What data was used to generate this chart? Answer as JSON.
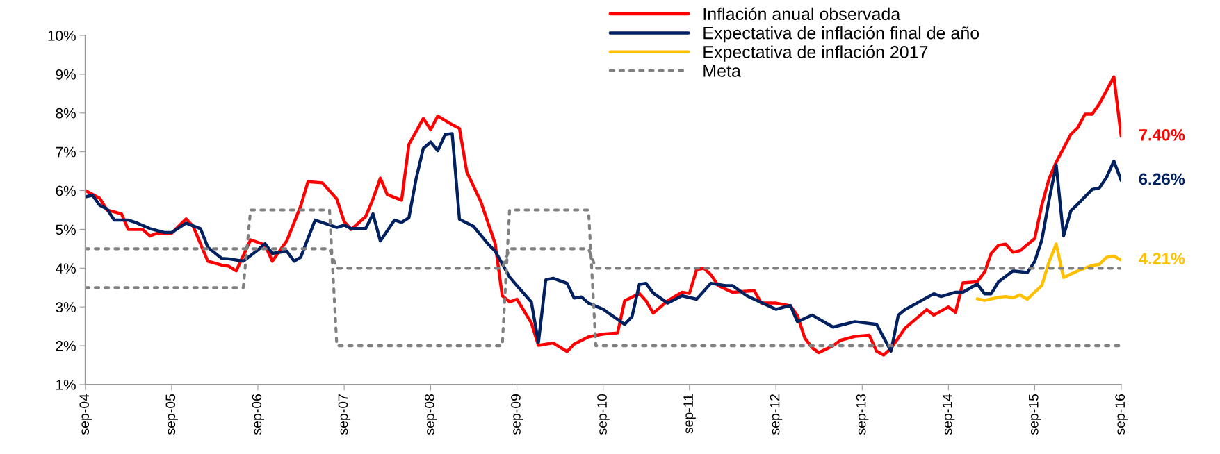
{
  "chart_data": {
    "type": "line",
    "xlim": [
      "2004-09",
      "2016-09"
    ],
    "xticks": [
      {
        "value": "2004-09",
        "label": "sep-04"
      },
      {
        "value": "2005-09",
        "label": "sep-05"
      },
      {
        "value": "2006-09",
        "label": "sep-06"
      },
      {
        "value": "2007-09",
        "label": "sep-07"
      },
      {
        "value": "2008-09",
        "label": "sep-08"
      },
      {
        "value": "2009-09",
        "label": "sep-09"
      },
      {
        "value": "2010-09",
        "label": "sep-10"
      },
      {
        "value": "2011-09",
        "label": "sep-11"
      },
      {
        "value": "2012-09",
        "label": "sep-12"
      },
      {
        "value": "2013-09",
        "label": "sep-13"
      },
      {
        "value": "2014-09",
        "label": "sep-14"
      },
      {
        "value": "2015-09",
        "label": "sep-15"
      },
      {
        "value": "2016-09",
        "label": "sep-16"
      }
    ],
    "ylim": [
      1,
      10
    ],
    "yticks": [
      {
        "value": 1,
        "label": "1%"
      },
      {
        "value": 2,
        "label": "2%"
      },
      {
        "value": 3,
        "label": "3%"
      },
      {
        "value": 4,
        "label": "4%"
      },
      {
        "value": 5,
        "label": "5%"
      },
      {
        "value": 6,
        "label": "6%"
      },
      {
        "value": 7,
        "label": "7%"
      },
      {
        "value": 8,
        "label": "8%"
      },
      {
        "value": 9,
        "label": "9%"
      },
      {
        "value": 10,
        "label": "10%"
      }
    ],
    "grid": false,
    "legend": "top right",
    "marker": "none",
    "series": [
      {
        "name": "Inflación anual observada",
        "color": "#ff0000",
        "line_style": "solid",
        "x": [
          "2004-09",
          "2004-11",
          "2004-12",
          "2005-02",
          "2005-03",
          "2005-05",
          "2005-06",
          "2005-07",
          "2005-09",
          "2005-11",
          "2005-12",
          "2006-01",
          "2006-02",
          "2006-04",
          "2006-05",
          "2006-06",
          "2006-08",
          "2006-10",
          "2006-11",
          "2006-12",
          "2007-01",
          "2007-03",
          "2007-04",
          "2007-06",
          "2007-08",
          "2007-09",
          "2007-10",
          "2007-12",
          "2008-01",
          "2008-02",
          "2008-03",
          "2008-05",
          "2008-06",
          "2008-08",
          "2008-09",
          "2008-10",
          "2008-12",
          "2009-01",
          "2009-02",
          "2009-04",
          "2009-06",
          "2009-07",
          "2009-08",
          "2009-09",
          "2009-11",
          "2009-12",
          "2010-02",
          "2010-04",
          "2010-05",
          "2010-07",
          "2010-09",
          "2010-11",
          "2010-12",
          "2011-02",
          "2011-03",
          "2011-04",
          "2011-06",
          "2011-08",
          "2011-09",
          "2011-10",
          "2011-11",
          "2011-12",
          "2012-01",
          "2012-03",
          "2012-06",
          "2012-07",
          "2012-09",
          "2012-11",
          "2012-12",
          "2013-01",
          "2013-02",
          "2013-03",
          "2013-05",
          "2013-06",
          "2013-08",
          "2013-10",
          "2013-11",
          "2013-12",
          "2014-01",
          "2014-03",
          "2014-06",
          "2014-07",
          "2014-09",
          "2014-10",
          "2014-11",
          "2015-01",
          "2015-02",
          "2015-03",
          "2015-04",
          "2015-05",
          "2015-06",
          "2015-07",
          "2015-09",
          "2015-10",
          "2015-11",
          "2015-12",
          "2016-02",
          "2016-03",
          "2016-04",
          "2016-05",
          "2016-06",
          "2016-08",
          "2016-09"
        ],
        "values": [
          6.0,
          5.8,
          5.5,
          5.4,
          5.0,
          5.0,
          4.83,
          4.9,
          4.9,
          5.27,
          5.08,
          4.63,
          4.18,
          4.08,
          4.05,
          3.93,
          4.73,
          4.6,
          4.18,
          4.44,
          4.7,
          5.6,
          6.23,
          6.2,
          5.78,
          5.2,
          5.0,
          5.33,
          5.78,
          6.32,
          5.9,
          5.75,
          7.19,
          7.86,
          7.57,
          7.92,
          7.7,
          7.6,
          6.48,
          5.72,
          4.63,
          3.29,
          3.13,
          3.2,
          2.59,
          2.01,
          2.07,
          1.85,
          2.04,
          2.23,
          2.3,
          2.33,
          3.16,
          3.35,
          3.16,
          2.84,
          3.16,
          3.38,
          3.35,
          3.96,
          4.0,
          3.83,
          3.55,
          3.38,
          3.42,
          3.1,
          3.1,
          3.03,
          2.78,
          2.2,
          1.95,
          1.82,
          2.0,
          2.14,
          2.24,
          2.27,
          1.86,
          1.76,
          1.93,
          2.45,
          2.93,
          2.79,
          3.0,
          2.86,
          3.62,
          3.65,
          3.9,
          4.38,
          4.59,
          4.62,
          4.41,
          4.45,
          4.76,
          5.62,
          6.31,
          6.73,
          7.45,
          7.62,
          7.97,
          7.97,
          8.24,
          8.93,
          7.4
        ]
      },
      {
        "name": "Expectativa de inflación final de año",
        "color": "#002060",
        "line_style": "solid",
        "x": [
          "2004-09",
          "2004-10",
          "2004-11",
          "2004-12",
          "2005-01",
          "2005-03",
          "2005-04",
          "2005-06",
          "2005-08",
          "2005-09",
          "2005-11",
          "2006-01",
          "2006-02",
          "2006-04",
          "2006-05",
          "2006-07",
          "2006-09",
          "2006-10",
          "2006-11",
          "2007-01",
          "2007-02",
          "2007-03",
          "2007-05",
          "2007-08",
          "2007-09",
          "2007-10",
          "2007-12",
          "2008-01",
          "2008-02",
          "2008-04",
          "2008-05",
          "2008-06",
          "2008-07",
          "2008-08",
          "2008-09",
          "2008-10",
          "2008-11",
          "2008-12",
          "2009-01",
          "2009-03",
          "2009-05",
          "2009-06",
          "2009-08",
          "2009-09",
          "2009-11",
          "2009-12",
          "2010-01",
          "2010-02",
          "2010-04",
          "2010-05",
          "2010-06",
          "2010-07",
          "2010-09",
          "2010-12",
          "2011-01",
          "2011-02",
          "2011-03",
          "2011-04",
          "2011-06",
          "2011-08",
          "2011-10",
          "2011-12",
          "2012-02",
          "2012-03",
          "2012-05",
          "2012-06",
          "2012-09",
          "2012-11",
          "2012-12",
          "2013-02",
          "2013-05",
          "2013-08",
          "2013-11",
          "2014-01",
          "2014-02",
          "2014-03",
          "2014-07",
          "2014-08",
          "2014-10",
          "2014-11",
          "2015-01",
          "2015-02",
          "2015-03",
          "2015-04",
          "2015-06",
          "2015-08",
          "2015-09",
          "2015-10",
          "2015-11",
          "2015-12",
          "2016-01",
          "2016-02",
          "2016-03",
          "2016-05",
          "2016-06",
          "2016-07",
          "2016-08",
          "2016-09"
        ],
        "values": [
          5.84,
          5.88,
          5.62,
          5.53,
          5.24,
          5.24,
          5.18,
          5.02,
          4.92,
          4.92,
          5.16,
          5.02,
          4.54,
          4.25,
          4.24,
          4.18,
          4.47,
          4.63,
          4.38,
          4.44,
          4.18,
          4.28,
          5.24,
          5.05,
          5.11,
          5.02,
          5.02,
          5.4,
          4.7,
          5.24,
          5.18,
          5.3,
          6.29,
          7.09,
          7.25,
          7.03,
          7.44,
          7.47,
          5.26,
          5.08,
          4.63,
          4.44,
          3.77,
          3.55,
          3.13,
          2.08,
          3.7,
          3.74,
          3.61,
          3.23,
          3.26,
          3.1,
          2.94,
          2.55,
          2.75,
          3.58,
          3.61,
          3.36,
          3.1,
          3.29,
          3.2,
          3.61,
          3.55,
          3.55,
          3.29,
          3.2,
          2.94,
          3.04,
          2.62,
          2.79,
          2.48,
          2.62,
          2.55,
          1.86,
          2.79,
          2.93,
          3.34,
          3.27,
          3.38,
          3.38,
          3.59,
          3.34,
          3.34,
          3.65,
          3.93,
          3.89,
          4.17,
          4.72,
          5.76,
          6.66,
          4.83,
          5.48,
          5.65,
          6.03,
          6.07,
          6.34,
          6.76,
          6.26
        ]
      },
      {
        "name": "Expectativa de inflación 2017",
        "color": "#ffc000",
        "line_style": "solid",
        "x": [
          "2015-01",
          "2015-02",
          "2015-04",
          "2015-05",
          "2015-06",
          "2015-07",
          "2015-08",
          "2015-09",
          "2015-10",
          "2015-11",
          "2015-12",
          "2016-01",
          "2016-03",
          "2016-05",
          "2016-06",
          "2016-07",
          "2016-08",
          "2016-09"
        ],
        "values": [
          3.21,
          3.17,
          3.25,
          3.27,
          3.24,
          3.31,
          3.2,
          3.38,
          3.55,
          4.17,
          4.62,
          3.76,
          3.93,
          4.07,
          4.1,
          4.28,
          4.31,
          4.21
        ]
      },
      {
        "name": "Meta",
        "color": "#808080",
        "line_style": "dotted",
        "x": [
          "2004-09",
          "2006-07",
          "2006-08",
          "2007-07",
          "2007-08",
          "2009-07",
          "2009-08",
          "2010-07",
          "2010-08",
          "2016-09"
        ],
        "values": [
          3.5,
          3.5,
          5.5,
          5.5,
          2,
          2,
          5.5,
          5.5,
          2,
          2
        ]
      },
      {
        "color": "#808080",
        "line_style": "dotted",
        "x": [
          "2004-09",
          "2007-07",
          "2007-08",
          "2009-07",
          "2009-08",
          "2010-07",
          "2010-08",
          "2016-09"
        ],
        "values": [
          4.5,
          4.5,
          4,
          4,
          4.5,
          4.5,
          4,
          4
        ]
      }
    ],
    "annotations": [
      {
        "text": "7.40%",
        "x": "2016-09",
        "y": 7.4
      },
      {
        "text": "6.26%",
        "x": "2016-09",
        "y": 6.26
      },
      {
        "text": "4.21%",
        "x": "2016-09",
        "y": 4.21
      }
    ]
  }
}
